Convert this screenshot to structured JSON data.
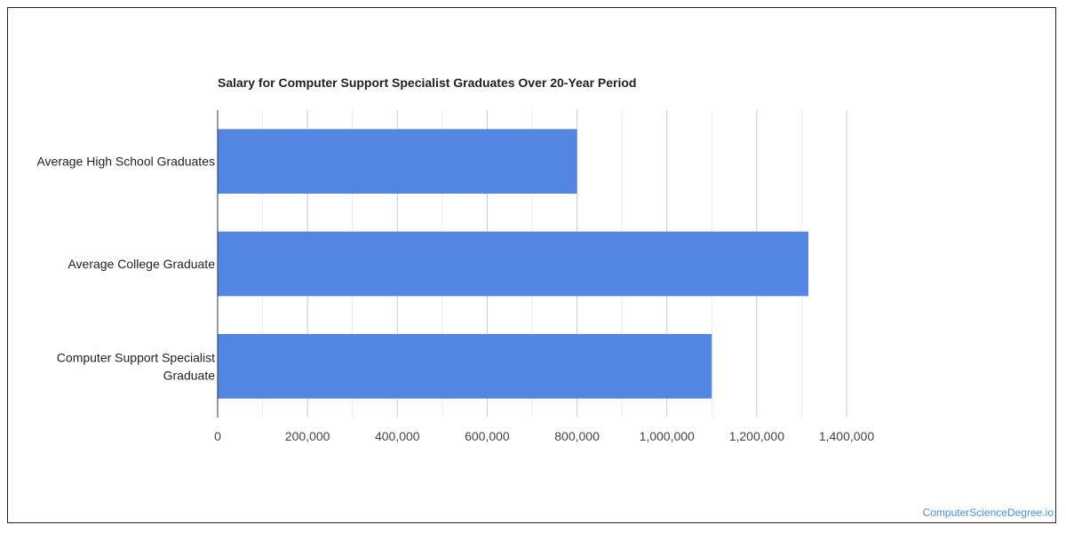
{
  "chart_data": {
    "type": "bar",
    "orientation": "horizontal",
    "title": "Salary for Computer Support Specialist Graduates Over 20-Year Period",
    "categories": [
      [
        "Average High School Graduates"
      ],
      [
        "Average College Graduate"
      ],
      [
        "Computer Support Specialist",
        "Graduate"
      ]
    ],
    "values": [
      800000,
      1315000,
      1100000
    ],
    "xlim": [
      0,
      1400000
    ],
    "xticks": [
      {
        "value": 0,
        "label": "0"
      },
      {
        "value": 200000,
        "label": "200,000"
      },
      {
        "value": 400000,
        "label": "400,000"
      },
      {
        "value": 600000,
        "label": "600,000"
      },
      {
        "value": 800000,
        "label": "800,000"
      },
      {
        "value": 1000000,
        "label": "1,000,000"
      },
      {
        "value": 1200000,
        "label": "1,200,000"
      },
      {
        "value": 1400000,
        "label": "1,400,000"
      }
    ],
    "xlabel": "",
    "ylabel": "",
    "grid": true,
    "bar_color": "#5486e3",
    "legend": "none"
  },
  "watermark": "ComputerScienceDegree.io"
}
